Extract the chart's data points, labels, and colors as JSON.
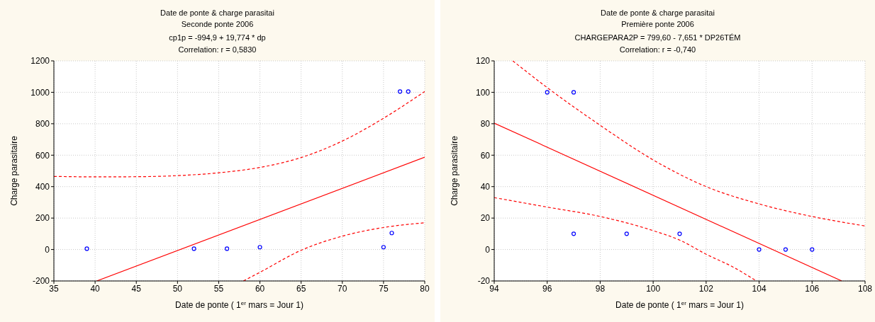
{
  "chart_data": [
    {
      "type": "scatter",
      "title": "Date de ponte & charge parasitai",
      "subtitle": "Seconde ponte 2006",
      "annotations": [
        "cp1p = -994,9 + 19,774 * dp",
        "Correlation: r = 0,5830"
      ],
      "xlabel": "Date de ponte ( 1$^{er}$ mars = Jour 1)",
      "ylabel": "Charge parasitaire",
      "xlim": [
        35,
        80
      ],
      "xticks": [
        35,
        40,
        45,
        50,
        55,
        60,
        65,
        70,
        75,
        80
      ],
      "ylim": [
        -200,
        1200
      ],
      "yticks": [
        -200,
        0,
        200,
        400,
        600,
        800,
        1000,
        1200
      ],
      "grid": true,
      "series": [
        {
          "type": "scatter",
          "marker": "circle",
          "color": "#0000ff",
          "x": [
            39,
            52,
            56,
            60,
            75,
            76,
            77,
            78
          ],
          "values": [
            5,
            5,
            5,
            15,
            15,
            105,
            1005,
            1005
          ]
        },
        {
          "type": "line",
          "line_style": "solid",
          "color": "#ff0000",
          "x": [
            40.2,
            80
          ],
          "values": [
            -200,
            587
          ]
        },
        {
          "type": "line",
          "line_style": "dashed",
          "color": "#ff0000",
          "x": [
            35,
            40,
            45,
            50,
            55,
            60,
            65,
            70,
            75,
            80
          ],
          "values": [
            465,
            462,
            463,
            470,
            488,
            522,
            585,
            690,
            835,
            1005
          ]
        },
        {
          "type": "line",
          "line_style": "dashed",
          "color": "#ff0000",
          "x": [
            58,
            60,
            65,
            70,
            75,
            80
          ],
          "values": [
            -200,
            -145,
            -5,
            85,
            140,
            170
          ]
        }
      ]
    },
    {
      "type": "scatter",
      "title": "Date de ponte & charge parasitai",
      "subtitle": "Première ponte 2006",
      "annotations": [
        "CHARGEPARA2P = 799,60 - 7,651  * DP26TÉM",
        "Correlation: r = -0,740"
      ],
      "xlabel": "Date de ponte ( 1$^{er}$ mars = Jour 1)",
      "ylabel": "Charge parasitaire",
      "xlim": [
        94,
        108
      ],
      "xticks": [
        94,
        96,
        98,
        100,
        102,
        104,
        106,
        108
      ],
      "ylim": [
        -20,
        120
      ],
      "yticks": [
        -20,
        0,
        20,
        40,
        60,
        80,
        100,
        120
      ],
      "grid": true,
      "series": [
        {
          "type": "scatter",
          "marker": "circle",
          "color": "#0000ff",
          "x": [
            96,
            97,
            97,
            99,
            101,
            104,
            105,
            106
          ],
          "values": [
            100,
            100,
            10,
            10,
            10,
            0,
            0,
            0
          ]
        },
        {
          "type": "line",
          "line_style": "solid",
          "color": "#ff0000",
          "x": [
            94,
            107.12
          ],
          "values": [
            80.4,
            -20
          ]
        },
        {
          "type": "line",
          "line_style": "dashed",
          "color": "#ff0000",
          "x": [
            94.7,
            96,
            98,
            100,
            102,
            104,
            106,
            108
          ],
          "values": [
            120,
            103,
            79,
            57,
            40,
            29,
            21,
            15
          ]
        },
        {
          "type": "line",
          "line_style": "dashed",
          "color": "#ff0000",
          "x": [
            94,
            96,
            98,
            100,
            101,
            102,
            103,
            103.9
          ],
          "values": [
            33,
            27,
            21,
            12,
            6,
            -3,
            -11,
            -20
          ]
        }
      ]
    }
  ]
}
